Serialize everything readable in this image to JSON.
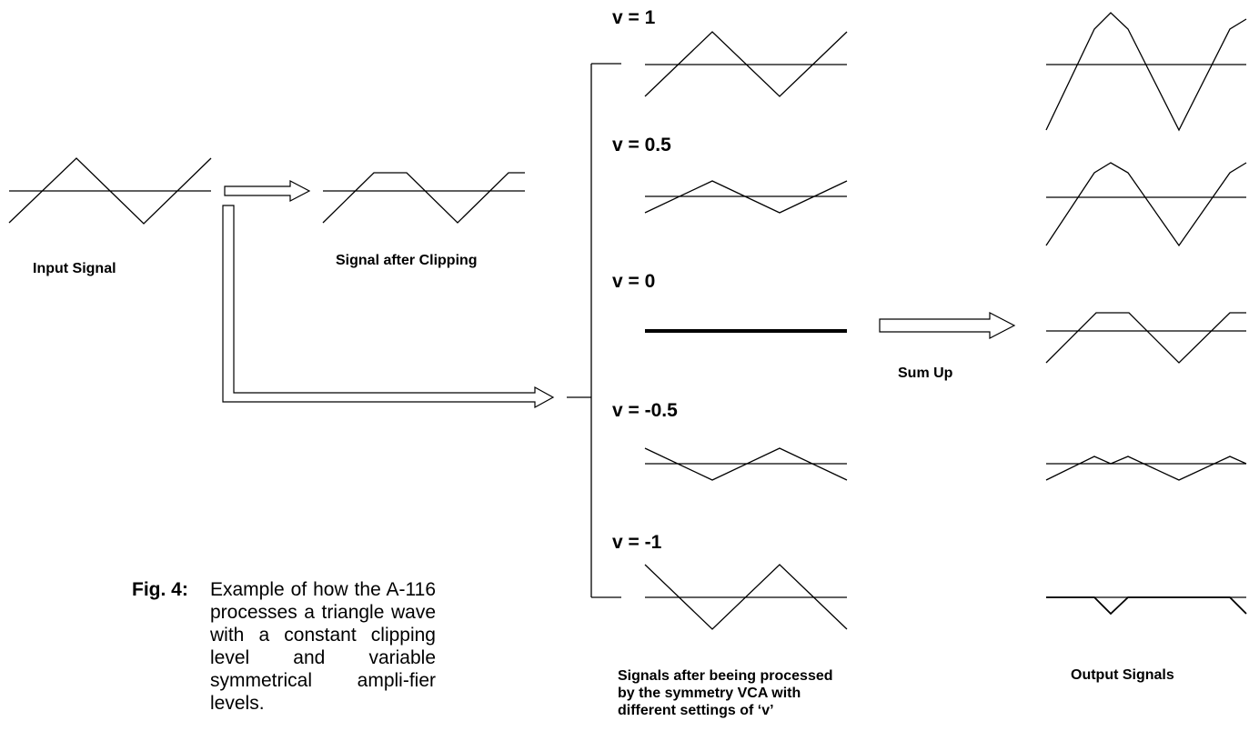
{
  "labels": {
    "input_signal": "Input Signal",
    "signal_after_clipping": "Signal after Clipping",
    "sum_up": "Sum  Up",
    "processed_line1": "Signals after beeing processed",
    "processed_line2": "by the symmetry VCA with",
    "processed_line3": "different settings of ‘v’",
    "output_signals": "Output Signals"
  },
  "v_settings": [
    "v = 1",
    "v = 0.5",
    "v = 0",
    "v = -0.5",
    "v = -1"
  ],
  "caption": {
    "tag": "Fig. 4",
    "tag_suffix": ":",
    "text": "Example of how the A-116 processes a triangle wave with a constant clipping level and variable symmetrical ampli-fier levels."
  }
}
